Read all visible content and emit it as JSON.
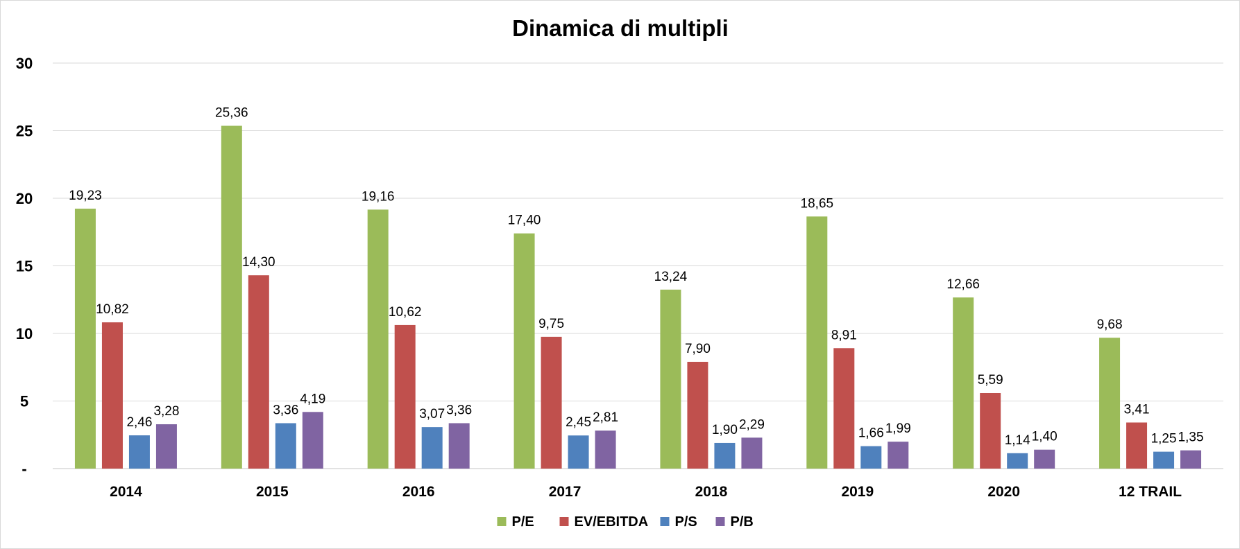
{
  "chart_data": {
    "type": "bar",
    "title": "Dinamica di multipli",
    "categories": [
      "2014",
      "2015",
      "2016",
      "2017",
      "2018",
      "2019",
      "2020",
      "12 TRAIL"
    ],
    "series": [
      {
        "name": "P/E",
        "color": "#9bbb59",
        "values": [
          19.23,
          25.36,
          19.16,
          17.4,
          13.24,
          18.65,
          12.66,
          9.68
        ],
        "labels": [
          "19,23",
          "25,36",
          "19,16",
          "17,40",
          "13,24",
          "18,65",
          "12,66",
          "9,68"
        ]
      },
      {
        "name": "EV/EBITDA",
        "color": "#c0504d",
        "values": [
          10.82,
          14.3,
          10.62,
          9.75,
          7.9,
          8.91,
          5.59,
          3.41
        ],
        "labels": [
          "10,82",
          "14,30",
          "10,62",
          "9,75",
          "7,90",
          "8,91",
          "5,59",
          "3,41"
        ]
      },
      {
        "name": "P/S",
        "color": "#4f81bd",
        "values": [
          2.46,
          3.36,
          3.07,
          2.45,
          1.9,
          1.66,
          1.14,
          1.25
        ],
        "labels": [
          "2,46",
          "3,36",
          "3,07",
          "2,45",
          "1,90",
          "1,66",
          "1,14",
          "1,25"
        ]
      },
      {
        "name": "P/B",
        "color": "#8064a2",
        "values": [
          3.28,
          4.19,
          3.36,
          2.81,
          2.29,
          1.99,
          1.4,
          1.35
        ],
        "labels": [
          "3,28",
          "4,19",
          "3,36",
          "2,81",
          "2,29",
          "1,99",
          "1,40",
          "1,35"
        ]
      }
    ],
    "y_ticks": [
      {
        "value": 0,
        "label": "-"
      },
      {
        "value": 5,
        "label": "5"
      },
      {
        "value": 10,
        "label": "10"
      },
      {
        "value": 15,
        "label": "15"
      },
      {
        "value": 20,
        "label": "20"
      },
      {
        "value": 25,
        "label": "25"
      },
      {
        "value": 30,
        "label": "30"
      }
    ],
    "ylim": [
      0,
      30
    ],
    "grid": true,
    "legend": "bottom-center"
  }
}
